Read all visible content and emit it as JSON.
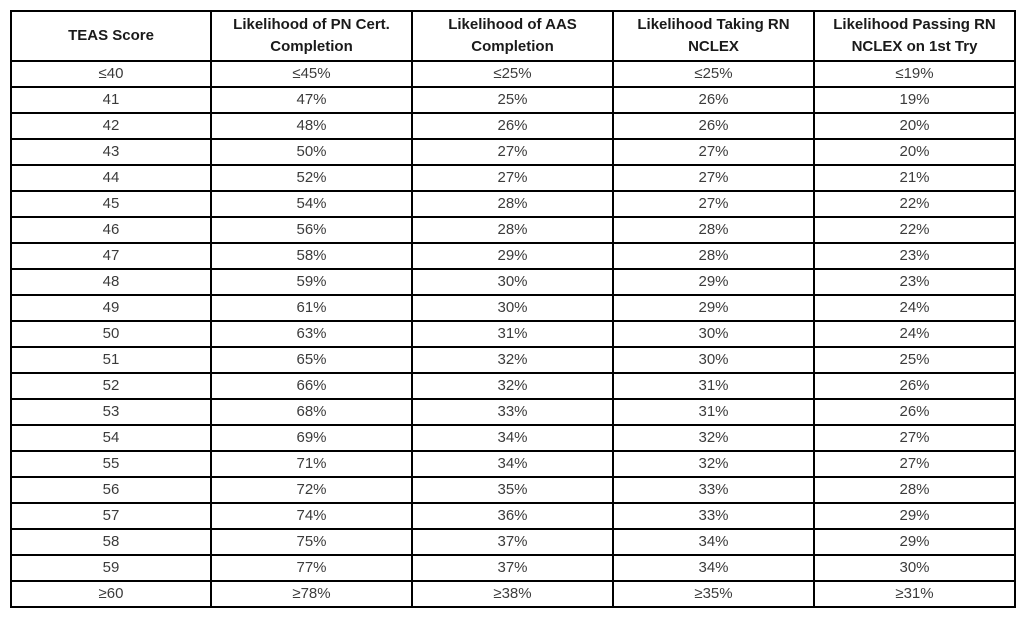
{
  "table": {
    "title": "TEAS score likelihood table",
    "columns": [
      "TEAS Score",
      "Likelihood of PN Cert.\nCompletion",
      "Likelihood of AAS\nCompletion",
      "Likelihood Taking RN\nNCLEX",
      "Likelihood Passing RN\nNCLEX on 1st Try"
    ],
    "rows": [
      [
        "≤40",
        "≤45%",
        "≤25%",
        "≤25%",
        "≤19%"
      ],
      [
        "41",
        "47%",
        "25%",
        "26%",
        "19%"
      ],
      [
        "42",
        "48%",
        "26%",
        "26%",
        "20%"
      ],
      [
        "43",
        "50%",
        "27%",
        "27%",
        "20%"
      ],
      [
        "44",
        "52%",
        "27%",
        "27%",
        "21%"
      ],
      [
        "45",
        "54%",
        "28%",
        "27%",
        "22%"
      ],
      [
        "46",
        "56%",
        "28%",
        "28%",
        "22%"
      ],
      [
        "47",
        "58%",
        "29%",
        "28%",
        "23%"
      ],
      [
        "48",
        "59%",
        "30%",
        "29%",
        "23%"
      ],
      [
        "49",
        "61%",
        "30%",
        "29%",
        "24%"
      ],
      [
        "50",
        "63%",
        "31%",
        "30%",
        "24%"
      ],
      [
        "51",
        "65%",
        "32%",
        "30%",
        "25%"
      ],
      [
        "52",
        "66%",
        "32%",
        "31%",
        "26%"
      ],
      [
        "53",
        "68%",
        "33%",
        "31%",
        "26%"
      ],
      [
        "54",
        "69%",
        "34%",
        "32%",
        "27%"
      ],
      [
        "55",
        "71%",
        "34%",
        "32%",
        "27%"
      ],
      [
        "56",
        "72%",
        "35%",
        "33%",
        "28%"
      ],
      [
        "57",
        "74%",
        "36%",
        "33%",
        "29%"
      ],
      [
        "58",
        "75%",
        "37%",
        "34%",
        "29%"
      ],
      [
        "59",
        "77%",
        "37%",
        "34%",
        "30%"
      ],
      [
        "≥60",
        "≥78%",
        "≥38%",
        "≥35%",
        "≥31%"
      ]
    ],
    "colors": {
      "border": "#000000",
      "header_text": "#1a1a1a",
      "cell_text": "#3b3b3b",
      "background": "#ffffff"
    }
  }
}
